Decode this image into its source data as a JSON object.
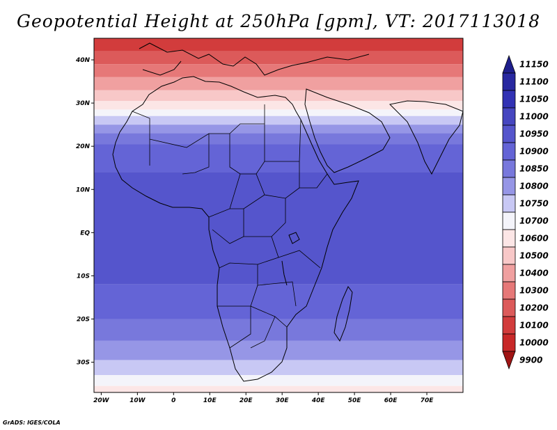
{
  "title": "Geopotential Height at 250hPa [gpm], VT: 2017113018",
  "credit": "GrADS: IGES/COLA",
  "map": {
    "lon_range": [
      -22,
      80
    ],
    "lat_range": [
      -37,
      45
    ],
    "lon_ticks": [
      {
        "value": -20,
        "label": "20W"
      },
      {
        "value": -10,
        "label": "10W"
      },
      {
        "value": 0,
        "label": "0"
      },
      {
        "value": 10,
        "label": "10E"
      },
      {
        "value": 20,
        "label": "20E"
      },
      {
        "value": 30,
        "label": "30E"
      },
      {
        "value": 40,
        "label": "40E"
      },
      {
        "value": 50,
        "label": "50E"
      },
      {
        "value": 60,
        "label": "60E"
      },
      {
        "value": 70,
        "label": "70E"
      }
    ],
    "lat_ticks": [
      {
        "value": 40,
        "label": "40N"
      },
      {
        "value": 30,
        "label": "30N"
      },
      {
        "value": 20,
        "label": "20N"
      },
      {
        "value": 10,
        "label": "10N"
      },
      {
        "value": 0,
        "label": "EQ"
      },
      {
        "value": -10,
        "label": "10S"
      },
      {
        "value": -20,
        "label": "20S"
      },
      {
        "value": -30,
        "label": "30S"
      }
    ]
  },
  "colorbar": {
    "levels": [
      "11150",
      "11100",
      "11050",
      "11000",
      "10950",
      "10900",
      "10850",
      "10800",
      "10750",
      "10700",
      "10600",
      "10500",
      "10400",
      "10300",
      "10200",
      "10100",
      "10000",
      "9900"
    ],
    "colors": [
      "#1e1e8c",
      "#2828a0",
      "#3232b4",
      "#4646c0",
      "#5555cc",
      "#6464d6",
      "#7878dc",
      "#9696e6",
      "#c8c8f4",
      "#f4f4fa",
      "#fce6e6",
      "#f8c8c8",
      "#f0a0a0",
      "#e67878",
      "#dc5a5a",
      "#d23c3c",
      "#c82828",
      "#a01414"
    ]
  },
  "field": [
    {
      "lat": 45,
      "color": "#d23c3c"
    },
    {
      "lat": 42,
      "color": "#dc5a5a"
    },
    {
      "lat": 39,
      "color": "#e67878"
    },
    {
      "lat": 36,
      "color": "#f0a0a0"
    },
    {
      "lat": 33,
      "color": "#f8c8c8"
    },
    {
      "lat": 30.5,
      "color": "#fce6e6"
    },
    {
      "lat": 28.5,
      "color": "#f4f4fa"
    },
    {
      "lat": 27,
      "color": "#c8c8f4"
    },
    {
      "lat": 25,
      "color": "#9696e6"
    },
    {
      "lat": 23,
      "color": "#7878dc"
    },
    {
      "lat": 20.5,
      "color": "#6464d6"
    },
    {
      "lat": 14,
      "color": "#5555cc"
    },
    {
      "lat": -12,
      "color": "#6464d6"
    },
    {
      "lat": -20,
      "color": "#7878dc"
    },
    {
      "lat": -25,
      "color": "#9696e6"
    },
    {
      "lat": -29.5,
      "color": "#c8c8f4"
    },
    {
      "lat": -33,
      "color": "#f4f4fa"
    },
    {
      "lat": -35.5,
      "color": "#fce6e6"
    }
  ]
}
